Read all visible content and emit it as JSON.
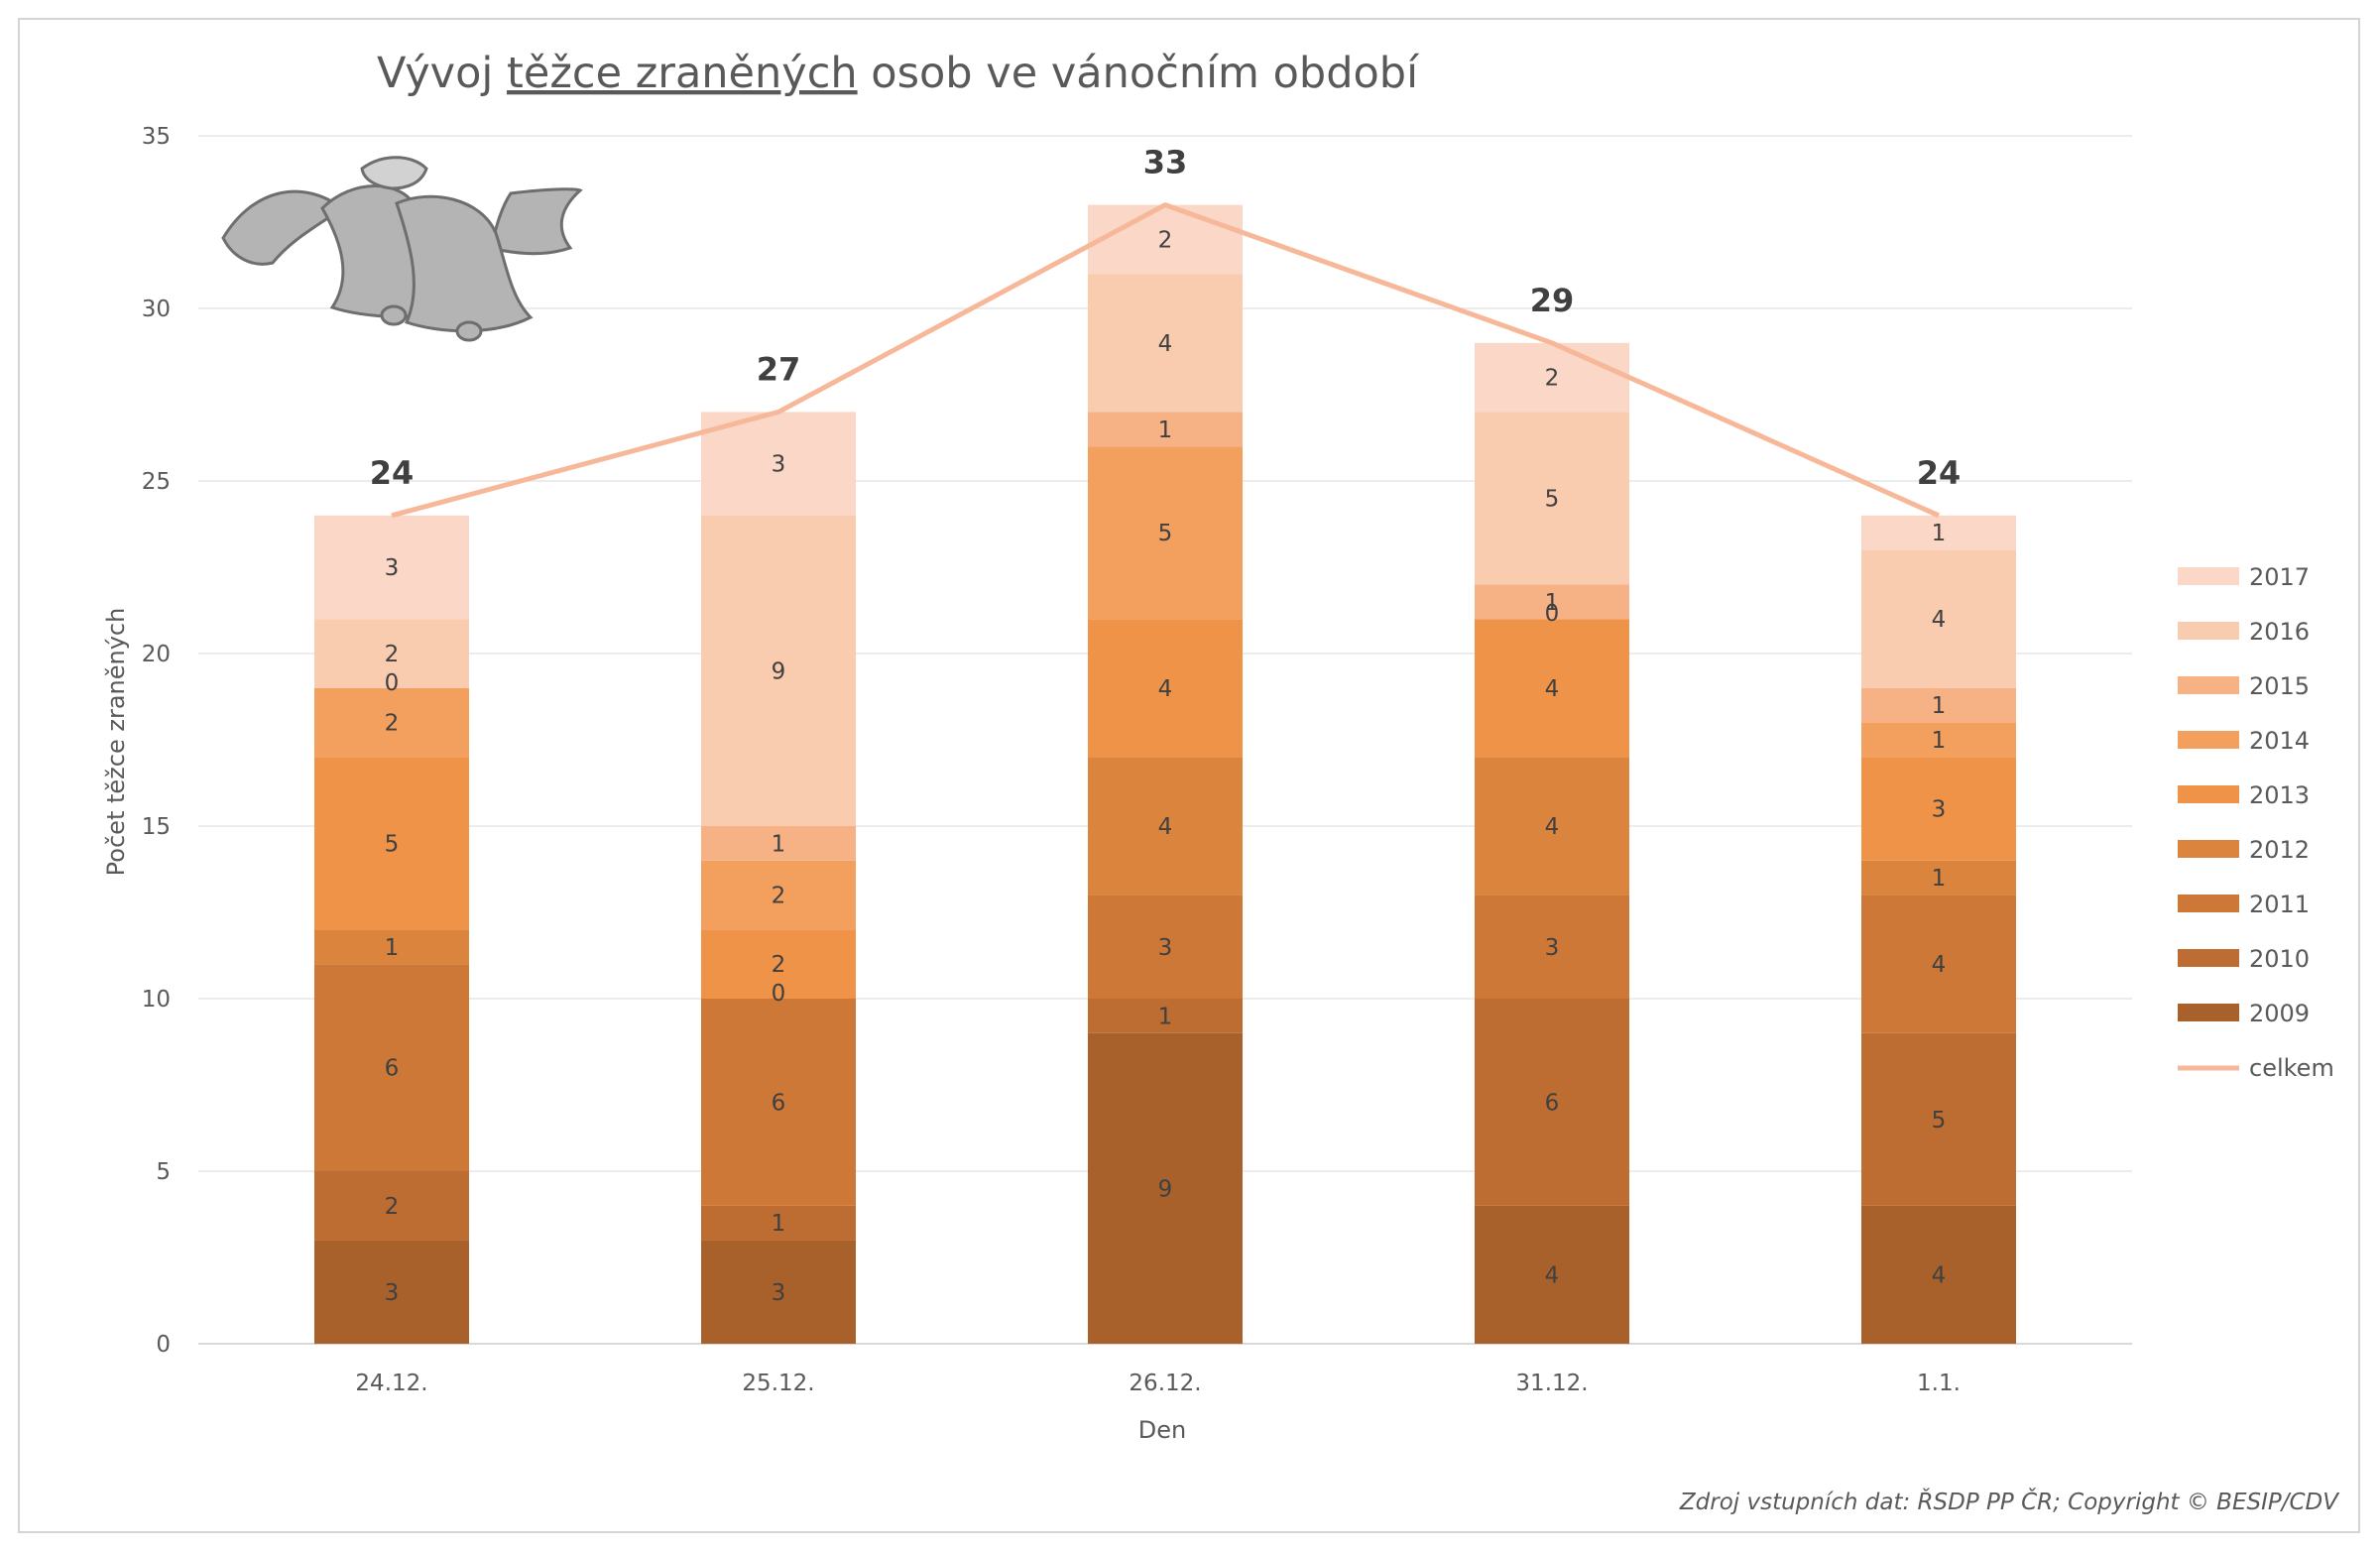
{
  "chart_data": {
    "type": "bar",
    "stacked": true,
    "title_parts": [
      "Vývoj ",
      "těžce zraněných",
      " osob ve vánočním období"
    ],
    "xlabel": "Den",
    "ylabel": "Počet těžce zraněných",
    "ylim": [
      0,
      35
    ],
    "yticks": [
      0,
      5,
      10,
      15,
      20,
      25,
      30,
      35
    ],
    "categories": [
      "24.12.",
      "25.12.",
      "26.12.",
      "31.12.",
      "1.1."
    ],
    "series": [
      {
        "name": "2009",
        "color": "#a9612b",
        "values": [
          3,
          3,
          9,
          4,
          4
        ]
      },
      {
        "name": "2010",
        "color": "#bd6d31",
        "values": [
          2,
          1,
          1,
          6,
          5
        ]
      },
      {
        "name": "2011",
        "color": "#cd7836",
        "values": [
          6,
          6,
          3,
          3,
          4
        ]
      },
      {
        "name": "2012",
        "color": "#db843d",
        "values": [
          1,
          0,
          4,
          4,
          1
        ]
      },
      {
        "name": "2013",
        "color": "#ef9348",
        "values": [
          5,
          2,
          4,
          4,
          3
        ]
      },
      {
        "name": "2014",
        "color": "#f39f5e",
        "values": [
          2,
          2,
          5,
          0,
          1
        ]
      },
      {
        "name": "2015",
        "color": "#f6b285",
        "values": [
          0,
          1,
          1,
          1,
          1
        ]
      },
      {
        "name": "2016",
        "color": "#f9cbaf",
        "values": [
          2,
          9,
          4,
          5,
          4
        ]
      },
      {
        "name": "2017",
        "color": "#fad7c6",
        "values": [
          3,
          3,
          2,
          2,
          1
        ]
      }
    ],
    "line": {
      "name": "celkem",
      "color": "#f7b89a",
      "values": [
        24,
        27,
        33,
        29,
        24
      ]
    },
    "legend_position": "right"
  },
  "source_note": "Zdroj vstupních dat: ŘSDP PP ČR; Copyright © BESIP/CDV",
  "decoration": {
    "icon": "christmas-bells-icon"
  }
}
